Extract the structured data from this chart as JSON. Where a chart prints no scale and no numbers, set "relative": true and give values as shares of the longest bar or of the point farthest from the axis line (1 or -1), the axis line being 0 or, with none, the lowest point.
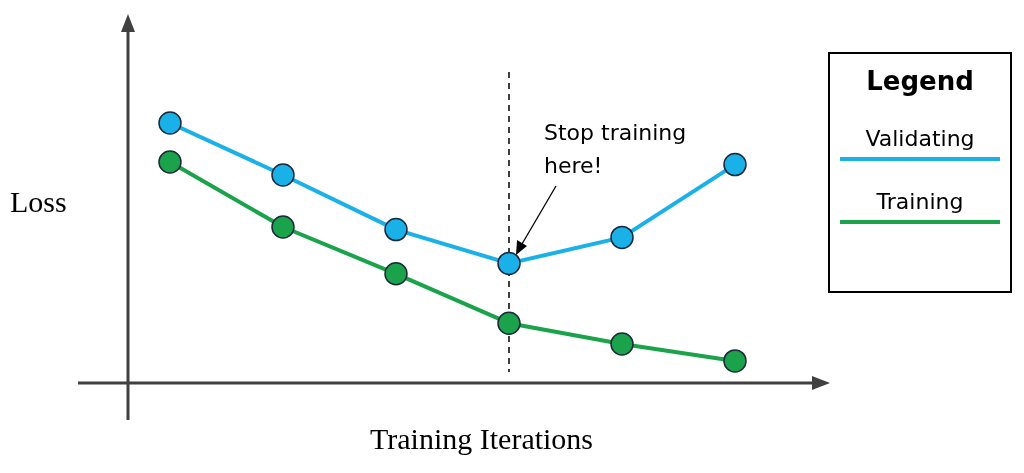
{
  "chart_data": {
    "type": "line",
    "relative": true,
    "xlabel": "Training Iterations",
    "ylabel": "Loss",
    "legend": "right",
    "legend_title": "Legend",
    "marker": "circle",
    "categories": [
      null,
      null,
      null,
      null,
      null,
      null
    ],
    "series": [
      {
        "name": "Validating",
        "color": "#1ab0e8",
        "values": [
          1.0,
          0.8,
          0.59,
          0.46,
          0.56,
          0.84
        ]
      },
      {
        "name": "Training",
        "color": "#1aa34a",
        "values": [
          0.85,
          0.6,
          0.42,
          0.23,
          0.15,
          0.085
        ]
      }
    ],
    "annotations": [
      "Stop training here!"
    ]
  }
}
